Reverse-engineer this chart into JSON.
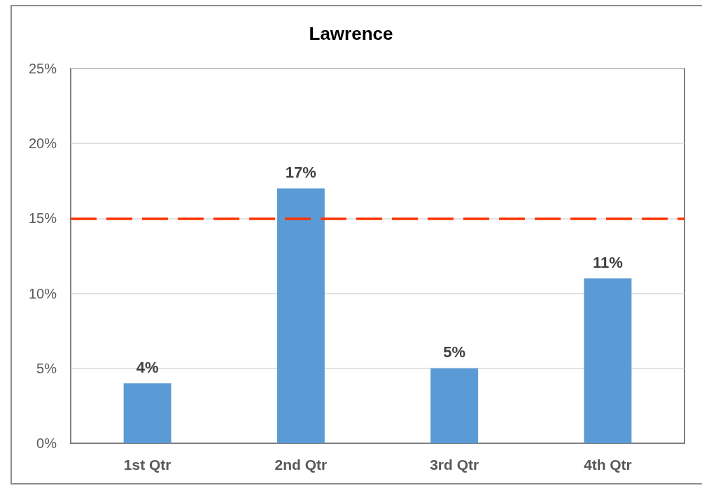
{
  "chart_data": {
    "type": "bar",
    "title": "Lawrence",
    "categories": [
      "1st Qtr",
      "2nd Qtr",
      "3rd Qtr",
      "4th Qtr"
    ],
    "values": [
      4,
      17,
      5,
      11
    ],
    "color": "#5b9bd5",
    "value_labels": [
      "4%",
      "17%",
      "5%",
      "11%"
    ],
    "ylim": [
      0,
      25
    ],
    "yticks": [
      {
        "value": 0,
        "label": "0%"
      },
      {
        "value": 5,
        "label": "5%"
      },
      {
        "value": 10,
        "label": "10%"
      },
      {
        "value": 15,
        "label": "15%"
      },
      {
        "value": 20,
        "label": "20%"
      },
      {
        "value": 25,
        "label": "25%"
      }
    ],
    "grid": "y",
    "ref_lines": [
      {
        "axis": "y",
        "value": 15,
        "color": "#ff3300",
        "line_style": "dashed"
      }
    ]
  }
}
